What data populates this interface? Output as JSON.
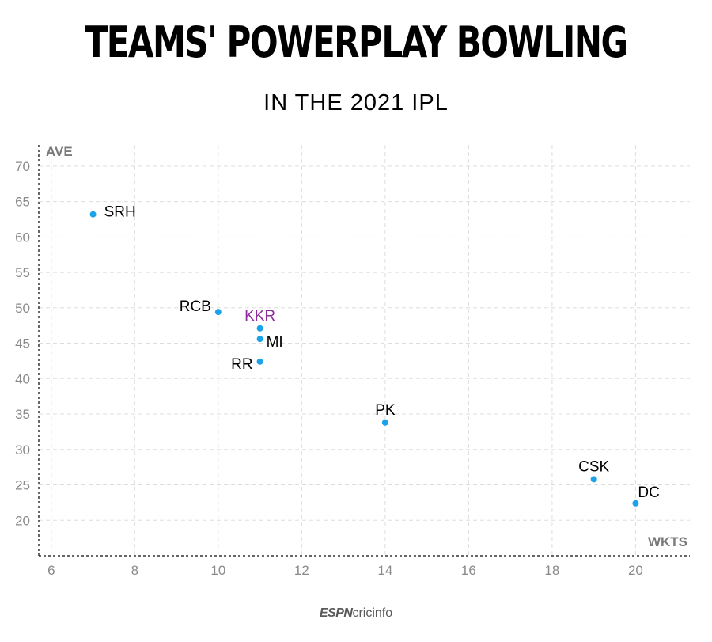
{
  "header": {
    "title": "TEAMS' POWERPLAY BOWLING",
    "subtitle": "IN THE 2021 IPL"
  },
  "footer": {
    "brand_left": "ESPN",
    "brand_right": "cricinfo"
  },
  "colors": {
    "point": "#1aa3e8",
    "highlight": "#8e2a9e",
    "label": "#000000",
    "grid": "#dddddd",
    "axis": "#333333"
  },
  "chart_data": {
    "type": "scatter",
    "title": "TEAMS' POWERPLAY BOWLING",
    "subtitle": "IN THE 2021 IPL",
    "xlabel": "WKTS",
    "ylabel": "AVE",
    "xlim": [
      5.7,
      21.3
    ],
    "ylim": [
      15,
      73
    ],
    "xticks": [
      6,
      8,
      10,
      12,
      14,
      16,
      18,
      20
    ],
    "yticks": [
      20,
      25,
      30,
      35,
      40,
      45,
      50,
      55,
      60,
      65,
      70
    ],
    "grid": true,
    "points": [
      {
        "label": "SRH",
        "x": 7,
        "y": 63.2,
        "label_pos": "right"
      },
      {
        "label": "RCB",
        "x": 10,
        "y": 49.4,
        "label_pos": "left"
      },
      {
        "label": "KKR",
        "x": 11,
        "y": 47.1,
        "label_pos": "top",
        "highlight": true
      },
      {
        "label": "MI",
        "x": 11,
        "y": 45.6,
        "label_pos": "right"
      },
      {
        "label": "RR",
        "x": 11,
        "y": 42.4,
        "label_pos": "left"
      },
      {
        "label": "PK",
        "x": 14,
        "y": 33.8,
        "label_pos": "top"
      },
      {
        "label": "CSK",
        "x": 19,
        "y": 25.8,
        "label_pos": "top"
      },
      {
        "label": "DC",
        "x": 20,
        "y": 22.4,
        "label_pos": "top-right"
      }
    ]
  }
}
